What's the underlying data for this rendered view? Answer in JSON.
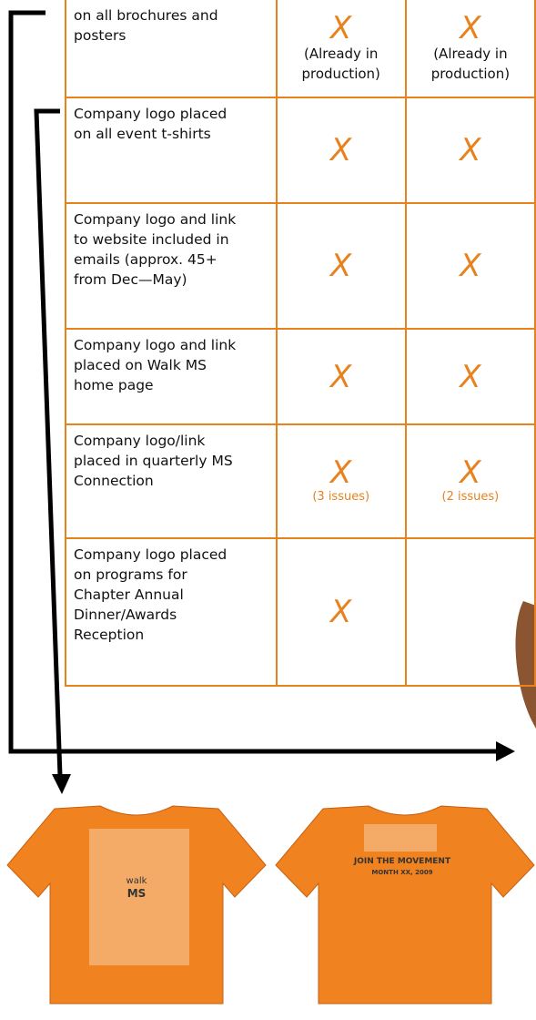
{
  "table": {
    "rows": [
      {
        "label": [
          "on all brochures and",
          "posters"
        ],
        "cells": [
          {
            "mark": "X",
            "note": [
              "(Already in",
              "production)"
            ]
          },
          {
            "mark": "X",
            "note": [
              "(Already in",
              "production)"
            ]
          }
        ]
      },
      {
        "label": [
          "Company logo placed",
          "on all event t-shirts"
        ],
        "cells": [
          {
            "mark": "X"
          },
          {
            "mark": "X"
          }
        ]
      },
      {
        "label": [
          "Company logo and link",
          "to website included in",
          "emails (approx. 45+",
          "from Dec—May)"
        ],
        "cells": [
          {
            "mark": "X"
          },
          {
            "mark": "X"
          }
        ]
      },
      {
        "label": [
          "Company logo and link",
          "placed on Walk MS",
          "home page"
        ],
        "cells": [
          {
            "mark": "X"
          },
          {
            "mark": "X"
          }
        ]
      },
      {
        "label": [
          "Company logo/link",
          "placed in quarterly MS",
          "Connection"
        ],
        "cells": [
          {
            "mark": "X",
            "issues": "(3 issues)"
          },
          {
            "mark": "X",
            "issues": "(2 issues)"
          }
        ]
      },
      {
        "label": [
          "Company logo placed",
          "on programs for",
          "Chapter Annual",
          "Dinner/Awards",
          "Reception"
        ],
        "cells": [
          {
            "mark": "X"
          }
        ]
      }
    ]
  },
  "shirts": {
    "front": [
      "walk",
      "MS"
    ],
    "back": [
      "JOIN THE MOVEMENT",
      "MONTH XX, 2009"
    ]
  }
}
